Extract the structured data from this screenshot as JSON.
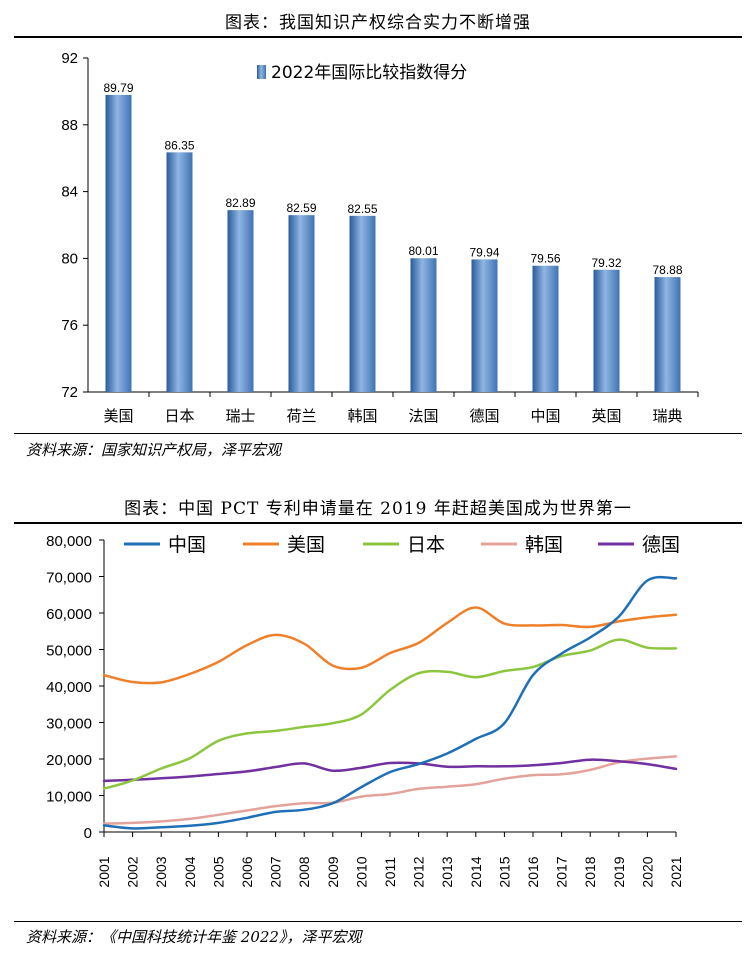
{
  "chart1": {
    "heading": "图表：我国知识产权综合实力不断增强",
    "source": "资料来源：国家知识产权局，泽平宏观"
  },
  "chart2": {
    "heading": "图表：中国 PCT 专利申请量在 2019 年赶超美国成为世界第一",
    "source": "资料来源：《中国科技统计年鉴 2022》，泽平宏观"
  },
  "chart_data": [
    {
      "type": "bar",
      "title": "",
      "legend": [
        "2022年国际比较指数得分"
      ],
      "legend_position": "top-center",
      "categories": [
        "美国",
        "日本",
        "瑞士",
        "荷兰",
        "韩国",
        "法国",
        "德国",
        "中国",
        "英国",
        "瑞典"
      ],
      "values": [
        89.79,
        86.35,
        82.89,
        82.59,
        82.55,
        80.01,
        79.94,
        79.56,
        79.32,
        78.88
      ],
      "value_labels": [
        "89.79",
        "86.35",
        "82.89",
        "82.59",
        "82.55",
        "80.01",
        "79.94",
        "79.56",
        "79.32",
        "78.88"
      ],
      "ylim": [
        72,
        92
      ],
      "yticks": [
        "72",
        "76",
        "80",
        "84",
        "88",
        "92"
      ],
      "grid": false,
      "bar_color": "#3f73b3"
    },
    {
      "type": "line",
      "title": "",
      "legend_position": "top",
      "x": [
        "2001",
        "2002",
        "2003",
        "2004",
        "2005",
        "2006",
        "2007",
        "2008",
        "2009",
        "2010",
        "2011",
        "2012",
        "2013",
        "2014",
        "2015",
        "2016",
        "2017",
        "2018",
        "2019",
        "2020",
        "2021"
      ],
      "ylim": [
        0,
        80000
      ],
      "yticks": [
        "0",
        "10,000",
        "20,000",
        "30,000",
        "40,000",
        "50,000",
        "60,000",
        "70,000",
        "80,000"
      ],
      "grid": false,
      "series": [
        {
          "name": "中国",
          "color": "#1f6fb8",
          "values": [
            1800,
            1000,
            1300,
            1700,
            2500,
            3900,
            5500,
            6100,
            7900,
            12300,
            16400,
            18600,
            21500,
            25500,
            29800,
            43000,
            48900,
            53300,
            59000,
            68900,
            69500
          ]
        },
        {
          "name": "美国",
          "color": "#f07f2a",
          "values": [
            43000,
            41100,
            41000,
            43300,
            46600,
            51200,
            54000,
            51600,
            45600,
            45000,
            49000,
            51800,
            57300,
            61500,
            57100,
            56600,
            56700,
            56200,
            57700,
            58800,
            59500
          ]
        },
        {
          "name": "日本",
          "color": "#8cc63f",
          "values": [
            11900,
            14100,
            17400,
            20200,
            25000,
            27000,
            27700,
            28800,
            29800,
            32200,
            38900,
            43500,
            43900,
            42400,
            44100,
            45200,
            48200,
            49700,
            52700,
            50500,
            50300
          ]
        },
        {
          "name": "韩国",
          "color": "#e3a39a",
          "values": [
            2300,
            2500,
            2900,
            3600,
            4700,
            5900,
            7100,
            7900,
            8000,
            9700,
            10400,
            11800,
            12400,
            13100,
            14600,
            15600,
            15800,
            17000,
            19100,
            20100,
            20700
          ]
        },
        {
          "name": "德国",
          "color": "#7030a0",
          "values": [
            14000,
            14300,
            14700,
            15200,
            15900,
            16600,
            17800,
            18800,
            16800,
            17600,
            18900,
            18800,
            17900,
            18000,
            18000,
            18300,
            18900,
            19800,
            19400,
            18600,
            17300
          ]
        }
      ]
    }
  ]
}
